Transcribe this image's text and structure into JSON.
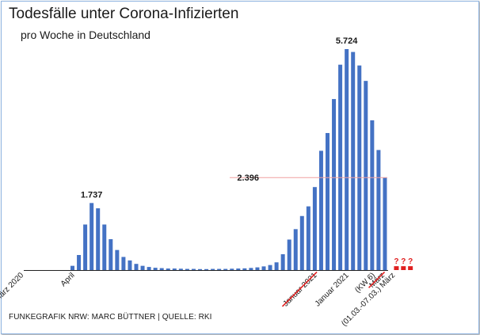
{
  "header": {
    "title": "Todesfälle unter Corona-Infizierten",
    "subtitle": "pro Woche in Deutschland"
  },
  "footer": {
    "credit": "FUNKEGRAFIK NRW: MARC BÜTTNER | QUELLE: RKI"
  },
  "chart_data": {
    "type": "bar",
    "title": "Todesfälle unter Corona-Infizierten",
    "subtitle": "pro Woche in Deutschland",
    "ylim": [
      0,
      6000
    ],
    "grid": false,
    "legend": "none",
    "bar_color": "#4472c4",
    "accent_color": "#e02020",
    "values": [
      0,
      0,
      0,
      0,
      0,
      0,
      0,
      0,
      110,
      390,
      1180,
      1737,
      1600,
      1180,
      800,
      520,
      340,
      250,
      160,
      110,
      80,
      60,
      50,
      40,
      40,
      35,
      30,
      30,
      25,
      25,
      30,
      30,
      30,
      35,
      40,
      45,
      55,
      70,
      95,
      130,
      200,
      410,
      790,
      1060,
      1400,
      1650,
      2150,
      3090,
      3550,
      4430,
      5320,
      5724,
      5650,
      5300,
      4900,
      3880,
      3110,
      2396
    ],
    "pending_values": [
      100,
      100,
      100
    ],
    "pending_labels": [
      "?",
      "?",
      "?"
    ],
    "data_labels": [
      {
        "index": 11,
        "text": "1.737"
      },
      {
        "index": 51,
        "text": "5.724"
      }
    ],
    "reference_line": {
      "value": 2396,
      "label": "2.396"
    },
    "x_ticks": [
      {
        "index": 0,
        "text": "März 2020"
      },
      {
        "index": 8,
        "text": "April"
      },
      {
        "index": 46,
        "text": "Januar 2021",
        "struck": true
      },
      {
        "index": 51,
        "text": "Januar 2021"
      },
      {
        "index": 56,
        "text": "(KW 6)"
      },
      {
        "index": 56,
        "text": "März",
        "struck": true
      },
      {
        "index": 58,
        "text": "(01.03.-07.03.) März"
      }
    ]
  }
}
